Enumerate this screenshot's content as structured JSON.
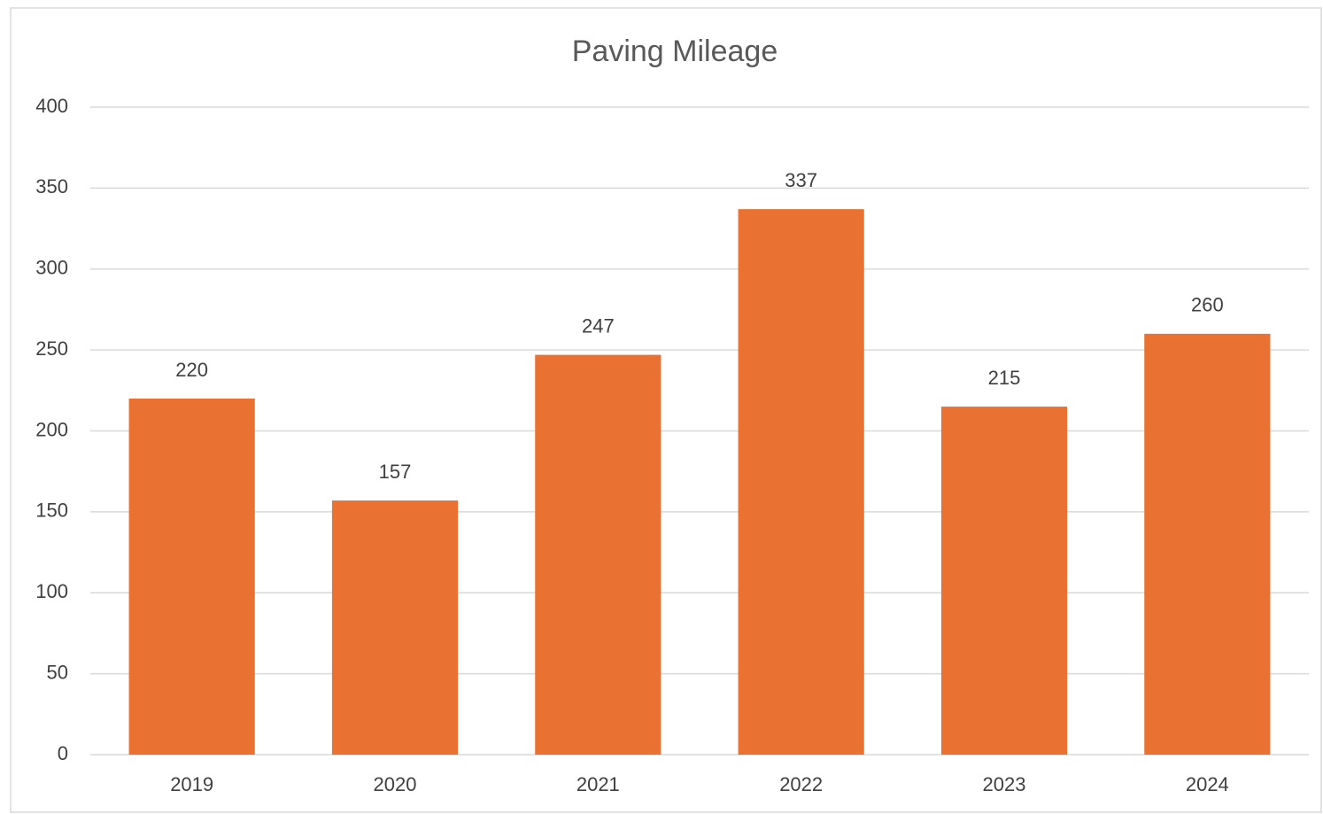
{
  "chart_data": {
    "type": "bar",
    "title": "Paving Mileage",
    "categories": [
      "2019",
      "2020",
      "2021",
      "2022",
      "2023",
      "2024"
    ],
    "values": [
      220,
      157,
      247,
      337,
      215,
      260
    ],
    "color": "#e97132",
    "ylim": [
      0,
      400
    ],
    "yticks": [
      0,
      50,
      100,
      150,
      200,
      250,
      300,
      350,
      400
    ],
    "grid": true
  }
}
